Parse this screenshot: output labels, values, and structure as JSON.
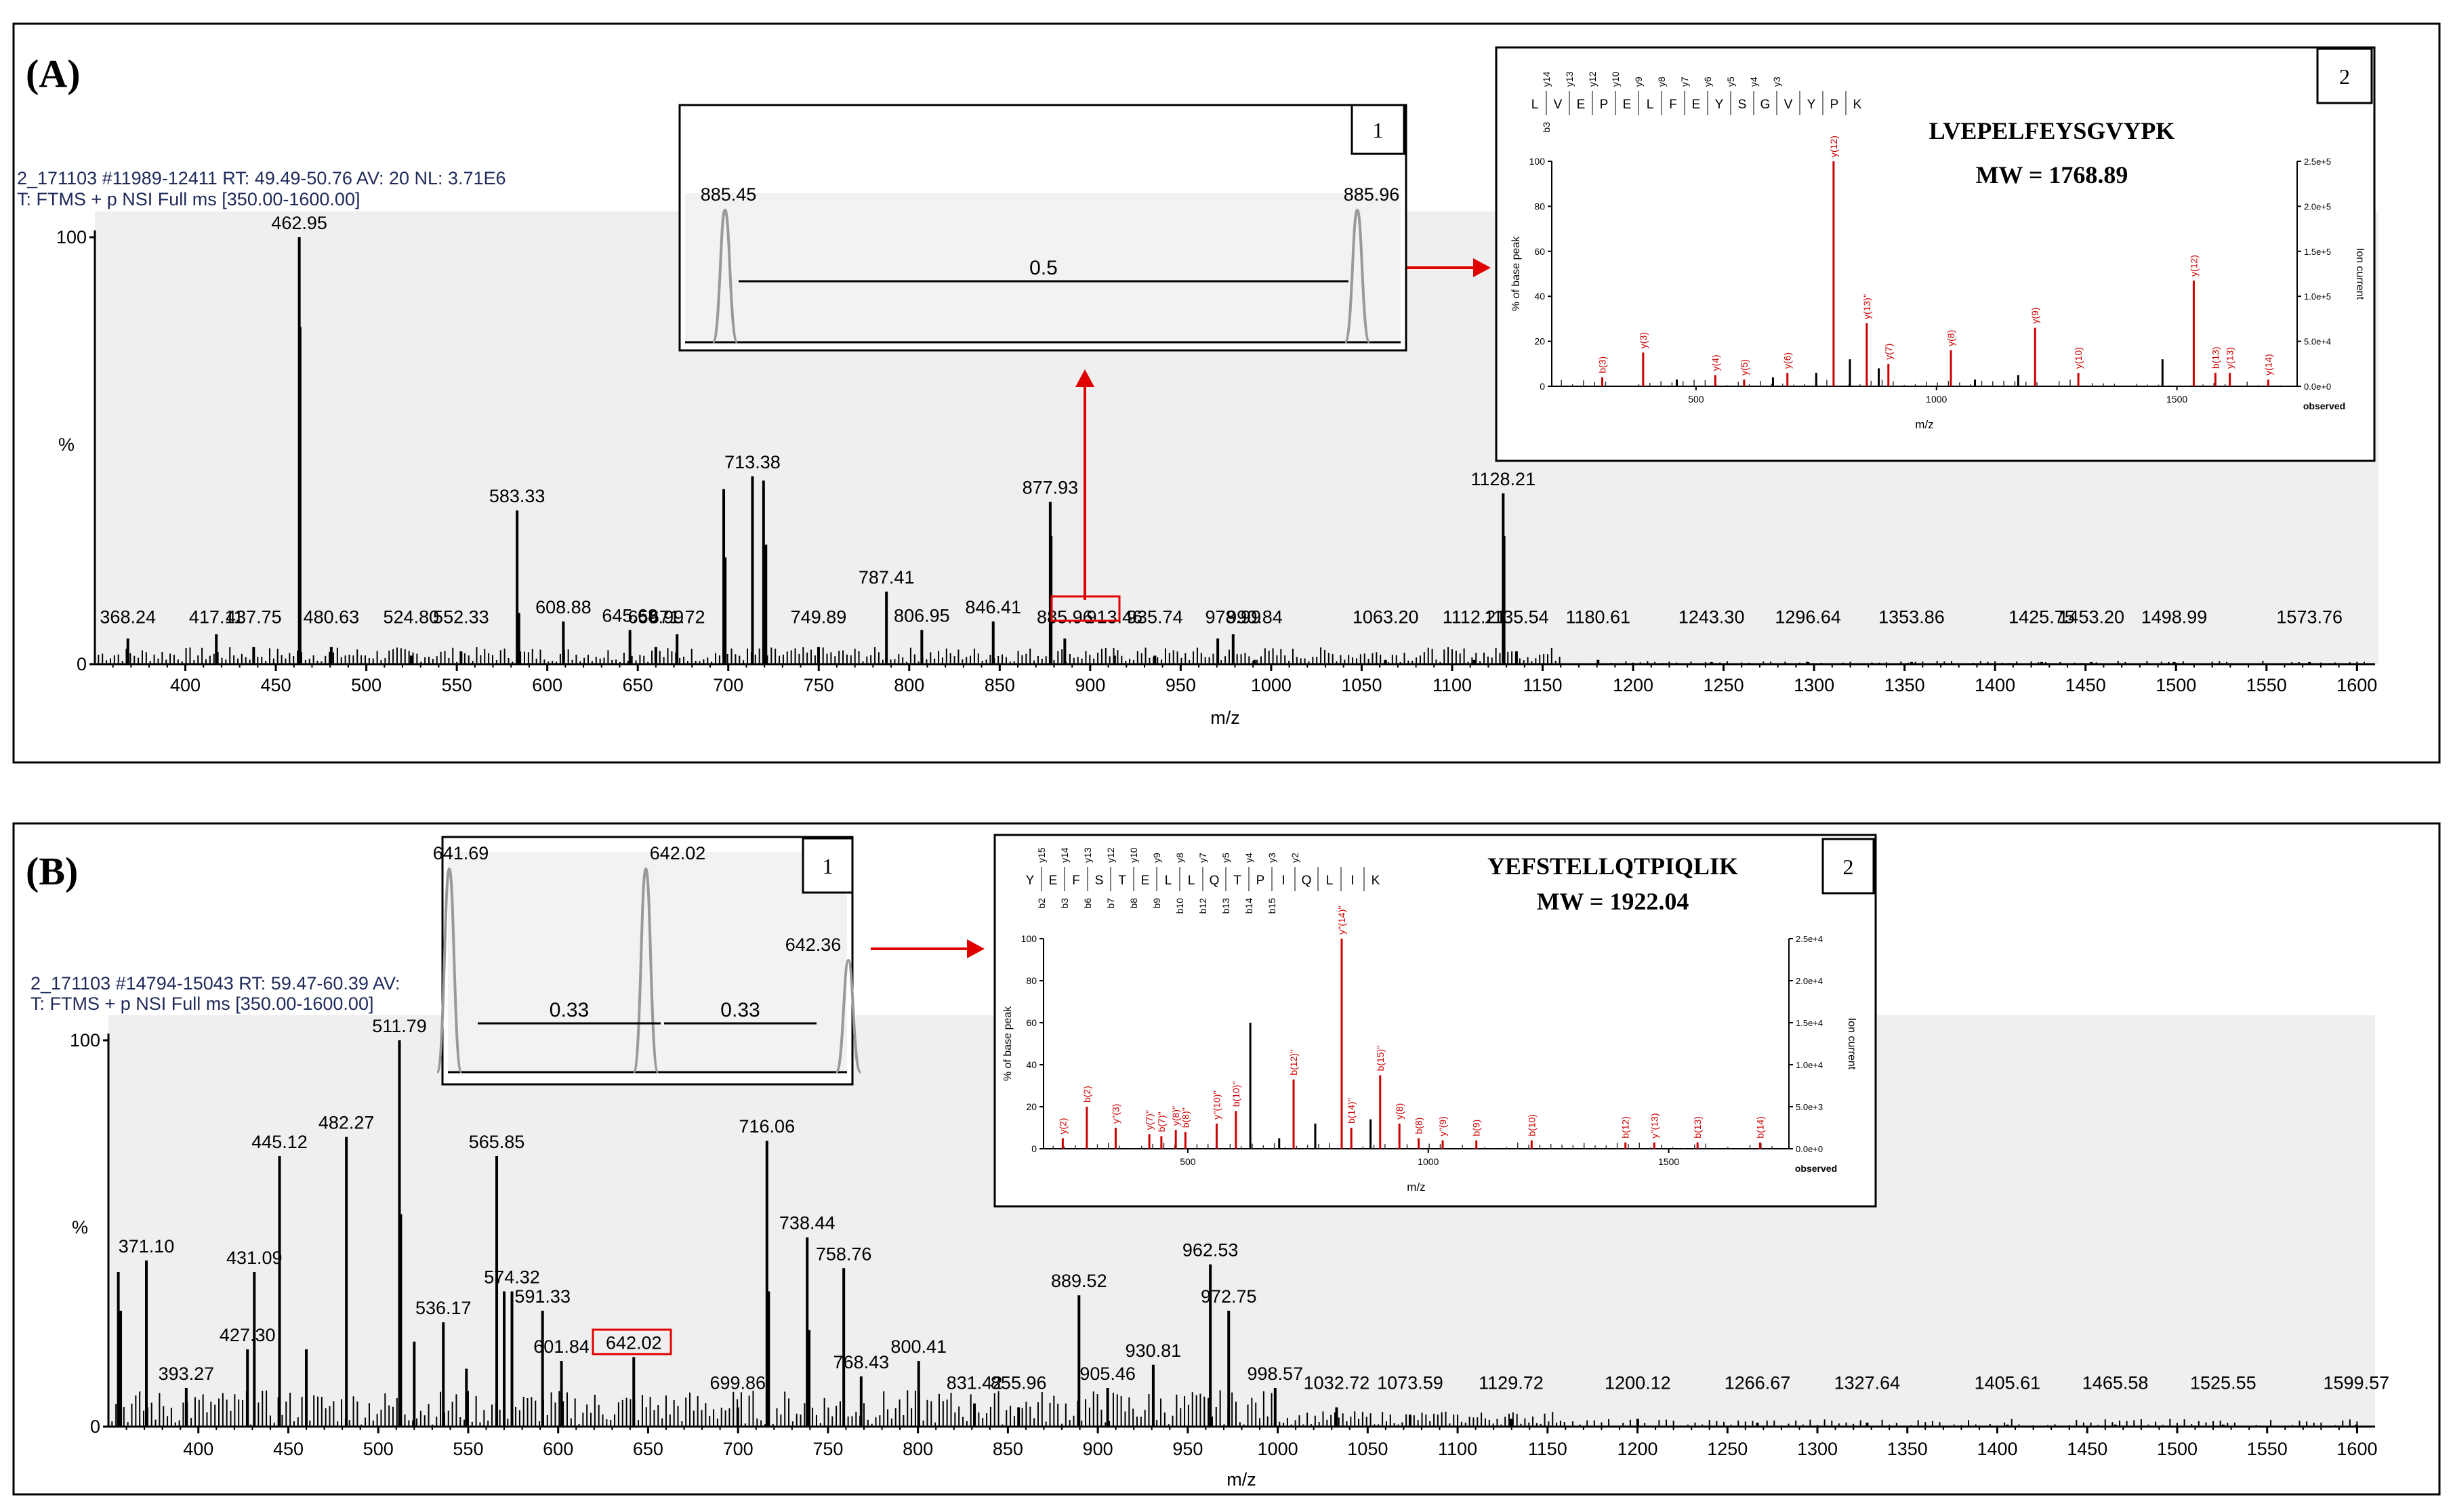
{
  "figure": {
    "title": "Mass spectrometry spectra figure"
  },
  "colors": {
    "bar": "#000000",
    "fragment": "#cc0000",
    "bg_plot": "#efefef",
    "header_text": "#1f2a5a",
    "leader": "#2e9e4a",
    "arrow": "#e00000",
    "peak_gray": "#999999"
  },
  "chart_data": [
    {
      "id": "A",
      "panel_label": "(A)",
      "type": "bar",
      "title_line1": "2_171103 #11989-12411  RT: 49.49-50.76  AV: 20  NL: 3.71E6",
      "title_line2": "T: FTMS + p NSI Full ms [350.00-1600.00]",
      "xlabel": "m/z",
      "ylabel": "%",
      "xlim": [
        350,
        1610
      ],
      "ylim": [
        0,
        100
      ],
      "xticks": [
        400,
        450,
        500,
        550,
        600,
        650,
        700,
        750,
        800,
        850,
        900,
        950,
        1000,
        1050,
        1100,
        1150,
        1200,
        1250,
        1300,
        1350,
        1400,
        1450,
        1500,
        1550,
        1600
      ],
      "ytick_labels": [
        "0",
        "%",
        "100"
      ],
      "peaks": [
        {
          "x": 368.24,
          "y": 6,
          "label": "368.24"
        },
        {
          "x": 417.11,
          "y": 7,
          "label": "417.11"
        },
        {
          "x": 437.75,
          "y": 4,
          "label": "437.75"
        },
        {
          "x": 462.95,
          "y": 100,
          "label": "462.95"
        },
        {
          "x": 463.4,
          "y": 79,
          "label": ""
        },
        {
          "x": 480.63,
          "y": 4,
          "label": "480.63"
        },
        {
          "x": 524.8,
          "y": 2,
          "label": "524.80"
        },
        {
          "x": 552.33,
          "y": 3,
          "label": "552.33"
        },
        {
          "x": 583.33,
          "y": 36,
          "label": "583.33"
        },
        {
          "x": 584.3,
          "y": 12,
          "label": ""
        },
        {
          "x": 608.88,
          "y": 10,
          "label": "608.88"
        },
        {
          "x": 645.68,
          "y": 8,
          "label": "645.68"
        },
        {
          "x": 659.99,
          "y": 4,
          "label": "659.99"
        },
        {
          "x": 671.72,
          "y": 7,
          "label": "671.72"
        },
        {
          "x": 697.5,
          "y": 41,
          "label": ""
        },
        {
          "x": 698.3,
          "y": 25,
          "label": ""
        },
        {
          "x": 713.38,
          "y": 44,
          "label": "713.38"
        },
        {
          "x": 719.5,
          "y": 43,
          "label": ""
        },
        {
          "x": 720.8,
          "y": 28,
          "label": ""
        },
        {
          "x": 749.89,
          "y": 4,
          "label": "749.89"
        },
        {
          "x": 787.41,
          "y": 17,
          "label": "787.41"
        },
        {
          "x": 806.95,
          "y": 8,
          "label": "806.95"
        },
        {
          "x": 846.41,
          "y": 10,
          "label": "846.41"
        },
        {
          "x": 877.93,
          "y": 38,
          "label": "877.93"
        },
        {
          "x": 878.4,
          "y": 30,
          "label": ""
        },
        {
          "x": 885.96,
          "y": 6,
          "label": "885.96"
        },
        {
          "x": 913.46,
          "y": 2,
          "label": "913.46"
        },
        {
          "x": 935.74,
          "y": 2,
          "label": "935.74"
        },
        {
          "x": 970.5,
          "y": 6,
          "label": ""
        },
        {
          "x": 978.99,
          "y": 7,
          "label": "978.99"
        },
        {
          "x": 990.84,
          "y": 1,
          "label": "990.84"
        },
        {
          "x": 1063.2,
          "y": 1,
          "label": "1063.20"
        },
        {
          "x": 1112.21,
          "y": 1,
          "label": "1112.21"
        },
        {
          "x": 1128.21,
          "y": 40,
          "label": "1128.21"
        },
        {
          "x": 1128.7,
          "y": 30,
          "label": ""
        },
        {
          "x": 1135.54,
          "y": 3,
          "label": "1135.54"
        },
        {
          "x": 1180.61,
          "y": 1,
          "label": "1180.61"
        },
        {
          "x": 1243.3,
          "y": 0.5,
          "label": "1243.30"
        },
        {
          "x": 1296.64,
          "y": 0.5,
          "label": "1296.64"
        },
        {
          "x": 1353.86,
          "y": 0.5,
          "label": "1353.86"
        },
        {
          "x": 1425.75,
          "y": 0.5,
          "label": "1425.75"
        },
        {
          "x": 1453.2,
          "y": 0.5,
          "label": "1453.20"
        },
        {
          "x": 1498.99,
          "y": 0.5,
          "label": "1498.99"
        },
        {
          "x": 1573.76,
          "y": 0.5,
          "label": "1573.76"
        }
      ],
      "highlight": "885.96",
      "inset1": {
        "box_label": "1",
        "peaks": [
          {
            "x": 885.45,
            "y": 100,
            "label": "885.45"
          },
          {
            "x": 885.96,
            "y": 100,
            "label": "885.96"
          }
        ],
        "spacing_labels": [
          "0.5"
        ]
      },
      "inset2": {
        "box_label": "2",
        "sequence": "LVEPELFEYSGVYPK",
        "sequence_letters": [
          "L",
          "V",
          "E",
          "P",
          "E",
          "L",
          "F",
          "E",
          "Y",
          "S",
          "G",
          "V",
          "Y",
          "P",
          "K"
        ],
        "top_ion_labels": [
          "y14",
          "y13",
          "y12",
          "y10",
          "y9",
          "y8",
          "y7",
          "y6",
          "y5",
          "y4",
          "y3"
        ],
        "bottom_ion_labels": [
          "b3"
        ],
        "mw": "MW = 1768.89",
        "ylabel": "% of base peak",
        "y2label": "Ion current",
        "xlabel": "m/z",
        "observed": "observed",
        "xlim": [
          200,
          1750
        ],
        "yticks": [
          "0",
          "20",
          "40",
          "60",
          "80",
          "100"
        ],
        "xticks": [
          {
            "v": 500,
            "label": "500"
          },
          {
            "v": 1000,
            "label": "1000"
          },
          {
            "v": 1500,
            "label": "1500"
          }
        ],
        "y2ticks": [
          "0.0e+0",
          "5.0e+4",
          "1.0e+5",
          "1.5e+5",
          "2.0e+5",
          "2.5e+5"
        ],
        "peaks": [
          {
            "x": 305,
            "y": 4,
            "label": "b(3)"
          },
          {
            "x": 390,
            "y": 15,
            "label": "y(3)"
          },
          {
            "x": 460,
            "y": 3,
            "label": ""
          },
          {
            "x": 540,
            "y": 5,
            "label": "y(4)"
          },
          {
            "x": 600,
            "y": 3,
            "label": "y(5)"
          },
          {
            "x": 660,
            "y": 4,
            "label": ""
          },
          {
            "x": 690,
            "y": 6,
            "label": "y(6)"
          },
          {
            "x": 750,
            "y": 6,
            "label": ""
          },
          {
            "x": 786,
            "y": 100,
            "label": "y(12)"
          },
          {
            "x": 820,
            "y": 12,
            "label": ""
          },
          {
            "x": 855,
            "y": 28,
            "label": "y(13)''"
          },
          {
            "x": 880,
            "y": 8,
            "label": ""
          },
          {
            "x": 900,
            "y": 10,
            "label": "y(7)"
          },
          {
            "x": 1030,
            "y": 16,
            "label": "y(8)"
          },
          {
            "x": 1080,
            "y": 3,
            "label": ""
          },
          {
            "x": 1170,
            "y": 5,
            "label": ""
          },
          {
            "x": 1205,
            "y": 26,
            "label": "y(9)"
          },
          {
            "x": 1295,
            "y": 6,
            "label": "y(10)"
          },
          {
            "x": 1470,
            "y": 12,
            "label": ""
          },
          {
            "x": 1535,
            "y": 47,
            "label": "y(12)"
          },
          {
            "x": 1580,
            "y": 6,
            "label": "b(13)"
          },
          {
            "x": 1610,
            "y": 6,
            "label": "y(13)"
          },
          {
            "x": 1690,
            "y": 3,
            "label": "y(14)"
          }
        ]
      }
    },
    {
      "id": "B",
      "panel_label": "(B)",
      "type": "bar",
      "title_line1": "2_171103 #14794-15043  RT: 59.47-60.39  AV:",
      "title_line2": "T: FTMS + p NSI Full ms [350.00-1600.00]",
      "xlabel": "m/z",
      "ylabel": "%",
      "xlim": [
        350,
        1610
      ],
      "ylim": [
        0,
        100
      ],
      "xticks": [
        400,
        450,
        500,
        550,
        600,
        650,
        700,
        750,
        800,
        850,
        900,
        950,
        1000,
        1050,
        1100,
        1150,
        1200,
        1250,
        1300,
        1350,
        1400,
        1450,
        1500,
        1550,
        1600
      ],
      "ytick_labels": [
        "0",
        "%",
        "100"
      ],
      "peaks": [
        {
          "x": 355.5,
          "y": 40,
          "label": ""
        },
        {
          "x": 356.8,
          "y": 30,
          "label": ""
        },
        {
          "x": 371.1,
          "y": 43,
          "label": "371.10"
        },
        {
          "x": 393.27,
          "y": 10,
          "label": "393.27"
        },
        {
          "x": 427.3,
          "y": 20,
          "label": "427.30"
        },
        {
          "x": 431.09,
          "y": 40,
          "label": "431.09"
        },
        {
          "x": 445.12,
          "y": 70,
          "label": "445.12"
        },
        {
          "x": 460.0,
          "y": 20,
          "label": ""
        },
        {
          "x": 482.27,
          "y": 75,
          "label": "482.27"
        },
        {
          "x": 511.79,
          "y": 100,
          "label": "511.79"
        },
        {
          "x": 512.5,
          "y": 55,
          "label": ""
        },
        {
          "x": 520.0,
          "y": 22,
          "label": ""
        },
        {
          "x": 536.17,
          "y": 27,
          "label": "536.17"
        },
        {
          "x": 549.0,
          "y": 15,
          "label": ""
        },
        {
          "x": 565.85,
          "y": 70,
          "label": "565.85"
        },
        {
          "x": 570.0,
          "y": 35,
          "label": ""
        },
        {
          "x": 574.32,
          "y": 35,
          "label": "574.32"
        },
        {
          "x": 591.33,
          "y": 30,
          "label": "591.33"
        },
        {
          "x": 601.84,
          "y": 17,
          "label": "601.84"
        },
        {
          "x": 642.02,
          "y": 18,
          "label": "642.02"
        },
        {
          "x": 699.86,
          "y": 5,
          "label": "699.86"
        },
        {
          "x": 716.06,
          "y": 74,
          "label": "716.06"
        },
        {
          "x": 717.0,
          "y": 35,
          "label": ""
        },
        {
          "x": 738.44,
          "y": 49,
          "label": "738.44"
        },
        {
          "x": 739.5,
          "y": 25,
          "label": ""
        },
        {
          "x": 758.76,
          "y": 41,
          "label": "758.76"
        },
        {
          "x": 768.43,
          "y": 13,
          "label": "768.43"
        },
        {
          "x": 800.41,
          "y": 17,
          "label": "800.41"
        },
        {
          "x": 831.42,
          "y": 6,
          "label": "831.42"
        },
        {
          "x": 855.96,
          "y": 5,
          "label": "855.96"
        },
        {
          "x": 889.52,
          "y": 34,
          "label": "889.52"
        },
        {
          "x": 905.46,
          "y": 10,
          "label": "905.46"
        },
        {
          "x": 930.81,
          "y": 16,
          "label": "930.81"
        },
        {
          "x": 962.53,
          "y": 42,
          "label": "962.53"
        },
        {
          "x": 972.75,
          "y": 30,
          "label": "972.75"
        },
        {
          "x": 998.57,
          "y": 10,
          "label": "998.57"
        },
        {
          "x": 1032.72,
          "y": 5,
          "label": "1032.72"
        },
        {
          "x": 1073.59,
          "y": 3,
          "label": "1073.59"
        },
        {
          "x": 1129.72,
          "y": 2,
          "label": "1129.72"
        },
        {
          "x": 1200.12,
          "y": 2,
          "label": "1200.12"
        },
        {
          "x": 1266.67,
          "y": 1,
          "label": "1266.67"
        },
        {
          "x": 1327.64,
          "y": 1,
          "label": "1327.64"
        },
        {
          "x": 1405.61,
          "y": 0.5,
          "label": "1405.61"
        },
        {
          "x": 1465.58,
          "y": 0.5,
          "label": "1465.58"
        },
        {
          "x": 1525.55,
          "y": 0.5,
          "label": "1525.55"
        },
        {
          "x": 1599.57,
          "y": 0.5,
          "label": "1599.57"
        }
      ],
      "highlight": "642.02",
      "inset1": {
        "box_label": "1",
        "peaks": [
          {
            "x": 641.69,
            "y": 100,
            "label": "641.69"
          },
          {
            "x": 642.02,
            "y": 100,
            "label": "642.02"
          },
          {
            "x": 642.36,
            "y": 55,
            "label": "642.36"
          }
        ],
        "spacing_labels": [
          "0.33",
          "0.33"
        ]
      },
      "inset2": {
        "box_label": "2",
        "sequence": "YEFSTELLQTPIQLIK",
        "sequence_letters": [
          "Y",
          "E",
          "F",
          "S",
          "T",
          "E",
          "L",
          "L",
          "Q",
          "T",
          "P",
          "I",
          "Q",
          "L",
          "I",
          "K"
        ],
        "top_ion_labels": [
          "y15",
          "y14",
          "y13",
          "y12",
          "y10",
          "y9",
          "y8",
          "y7",
          "y5",
          "y4",
          "y3",
          "y2"
        ],
        "bottom_ion_labels": [
          "b2",
          "b3",
          "b6",
          "b7",
          "b8",
          "b9",
          "b10",
          "b12",
          "b13",
          "b14",
          "b15"
        ],
        "mw": "MW = 1922.04",
        "ylabel": "% of base peak",
        "y2label": "Ion current",
        "xlabel": "m/z",
        "observed": "observed",
        "xlim": [
          200,
          1750
        ],
        "yticks": [
          "0",
          "20",
          "40",
          "60",
          "80",
          "100"
        ],
        "xticks": [
          {
            "v": 500,
            "label": "500"
          },
          {
            "v": 1000,
            "label": "1000"
          },
          {
            "v": 1500,
            "label": "1500"
          }
        ],
        "y2ticks": [
          "0.0e+0",
          "5.0e+3",
          "1.0e+4",
          "1.5e+4",
          "2.0e+4",
          "2.5e+4"
        ],
        "peaks": [
          {
            "x": 240,
            "y": 5,
            "label": "y(2)"
          },
          {
            "x": 290,
            "y": 20,
            "label": "b(2)"
          },
          {
            "x": 350,
            "y": 10,
            "label": "y''(3)"
          },
          {
            "x": 420,
            "y": 7,
            "label": "y(7)''"
          },
          {
            "x": 445,
            "y": 6,
            "label": "b(7)''"
          },
          {
            "x": 475,
            "y": 9,
            "label": "y(8)''"
          },
          {
            "x": 495,
            "y": 8,
            "label": "b(8)''"
          },
          {
            "x": 560,
            "y": 12,
            "label": "y''(10)''"
          },
          {
            "x": 600,
            "y": 18,
            "label": "b(10)''"
          },
          {
            "x": 630,
            "y": 60,
            "label": ""
          },
          {
            "x": 690,
            "y": 5,
            "label": ""
          },
          {
            "x": 720,
            "y": 33,
            "label": "b(12)''"
          },
          {
            "x": 765,
            "y": 12,
            "label": ""
          },
          {
            "x": 820,
            "y": 100,
            "label": "y''(14)''"
          },
          {
            "x": 840,
            "y": 10,
            "label": "b(14)''"
          },
          {
            "x": 880,
            "y": 14,
            "label": ""
          },
          {
            "x": 900,
            "y": 35,
            "label": "b(15)''"
          },
          {
            "x": 940,
            "y": 12,
            "label": "y(8)"
          },
          {
            "x": 980,
            "y": 5,
            "label": "b(8)"
          },
          {
            "x": 1030,
            "y": 4,
            "label": "y''(9)"
          },
          {
            "x": 1100,
            "y": 4,
            "label": "b(9)"
          },
          {
            "x": 1215,
            "y": 4,
            "label": "b(10)"
          },
          {
            "x": 1410,
            "y": 3,
            "label": "b(12)"
          },
          {
            "x": 1470,
            "y": 3,
            "label": "y''(13)"
          },
          {
            "x": 1560,
            "y": 3,
            "label": "b(13)"
          },
          {
            "x": 1690,
            "y": 3,
            "label": "b(14)"
          }
        ]
      }
    }
  ]
}
